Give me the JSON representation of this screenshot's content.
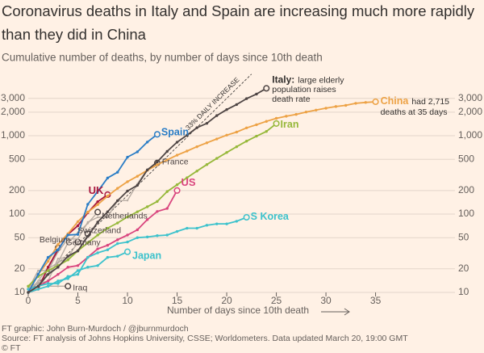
{
  "chart_data": {
    "type": "line",
    "title_lines": [
      "Coronavirus deaths in Italy and Spain are increasing much more rapidly",
      "than they did in China"
    ],
    "subtitle": "Cumulative number of deaths, by number of days since 10th death",
    "x_label": "Number of days since 10th death",
    "log_y": true,
    "grid": true,
    "xlim": [
      0,
      43
    ],
    "xticks": [
      0,
      5,
      10,
      15,
      20,
      25,
      30,
      35
    ],
    "ylim": [
      10,
      4500
    ],
    "yticks": [
      10,
      20,
      50,
      100,
      200,
      500,
      {
        "value": 1000,
        "label": "1,000"
      },
      {
        "value": 2000,
        "label": "2,000"
      },
      {
        "value": 3000,
        "label": "3,000"
      }
    ],
    "reference_line": {
      "label": "33% DAILY INCREASE",
      "daily_increase": 33
    },
    "series": [
      {
        "name": "Iraq",
        "color": "#b8ada4",
        "values": [
          10,
          11,
          12,
          12,
          12
        ]
      },
      {
        "name": "Belgium",
        "color": "#b8ada4",
        "values": [
          10,
          14,
          21,
          37
        ]
      },
      {
        "name": "Germany",
        "color": "#b8ada4",
        "values": [
          12,
          13,
          17,
          24,
          28,
          44
        ]
      },
      {
        "name": "Switzerland",
        "color": "#b8ada4",
        "values": [
          11,
          13,
          14,
          27,
          28,
          33,
          56
        ]
      },
      {
        "name": "Netherlands",
        "color": "#b8ada4",
        "values": [
          10,
          12,
          20,
          24,
          43,
          58,
          76,
          106
        ]
      },
      {
        "name": "France",
        "color": "#b8ada4",
        "values": [
          11,
          19,
          19,
          33,
          48,
          48,
          79,
          91,
          91,
          148,
          149,
          244,
          372,
          450
        ]
      },
      {
        "name": "US",
        "color": "#d9457e",
        "values": [
          11,
          12,
          14,
          17,
          21,
          22,
          28,
          36,
          40,
          47,
          54,
          63,
          85,
          108,
          118,
          200
        ]
      },
      {
        "name": "UK",
        "color": "#a8173e",
        "values": [
          10,
          11,
          21,
          35,
          55,
          71,
          104,
          144,
          177
        ]
      },
      {
        "name": "Japan",
        "color": "#3cc2cc",
        "values": [
          10,
          11,
          12,
          14,
          15,
          19,
          21,
          22,
          28,
          29,
          33
        ]
      },
      {
        "name": "S Korea",
        "color": "#3cc2cc",
        "values": [
          11,
          12,
          13,
          13,
          16,
          17,
          28,
          32,
          35,
          42,
          44,
          50,
          51,
          53,
          54,
          60,
          66,
          66,
          72,
          75,
          75,
          81,
          91
        ]
      },
      {
        "name": "Iran",
        "color": "#96b83a",
        "values": [
          12,
          16,
          19,
          22,
          26,
          34,
          43,
          54,
          66,
          77,
          92,
          107,
          124,
          145,
          194,
          237,
          291,
          354,
          429,
          514,
          611,
          724,
          853,
          988,
          1135,
          1433
        ]
      },
      {
        "name": "China",
        "color": "#eda245",
        "values": [
          10,
          17,
          25,
          41,
          56,
          80,
          106,
          132,
          170,
          213,
          259,
          304,
          362,
          426,
          492,
          565,
          638,
          724,
          813,
          910,
          1018,
          1115,
          1261,
          1383,
          1526,
          1669,
          1775,
          1873,
          2009,
          2126,
          2247,
          2360,
          2442,
          2592,
          2663,
          2715
        ],
        "note": [
          "had 2,715",
          "deaths at 35 days"
        ]
      },
      {
        "name": "Spain",
        "color": "#2a7dc6",
        "values": [
          10,
          17,
          28,
          35,
          54,
          55,
          133,
          195,
          289,
          342,
          533,
          623,
          830,
          1043
        ]
      },
      {
        "name": "Italy",
        "color": "#4e4544",
        "label": "Italy:",
        "values": [
          10,
          12,
          17,
          21,
          29,
          34,
          52,
          79,
          107,
          148,
          197,
          233,
          366,
          463,
          631,
          827,
          1016,
          1266,
          1441,
          1809,
          2158,
          2503,
          2978,
          3405,
          4032
        ],
        "note": [
          "large elderly",
          "population raises",
          "death rate"
        ]
      }
    ]
  },
  "footer": {
    "lines": [
      "FT graphic: John Burn-Murdoch / @jburnmurdoch",
      "Source: FT analysis of Johns Hopkins University, CSSE; Worldometers. Data updated March 20, 19:00 GMT",
      "© FT"
    ]
  }
}
